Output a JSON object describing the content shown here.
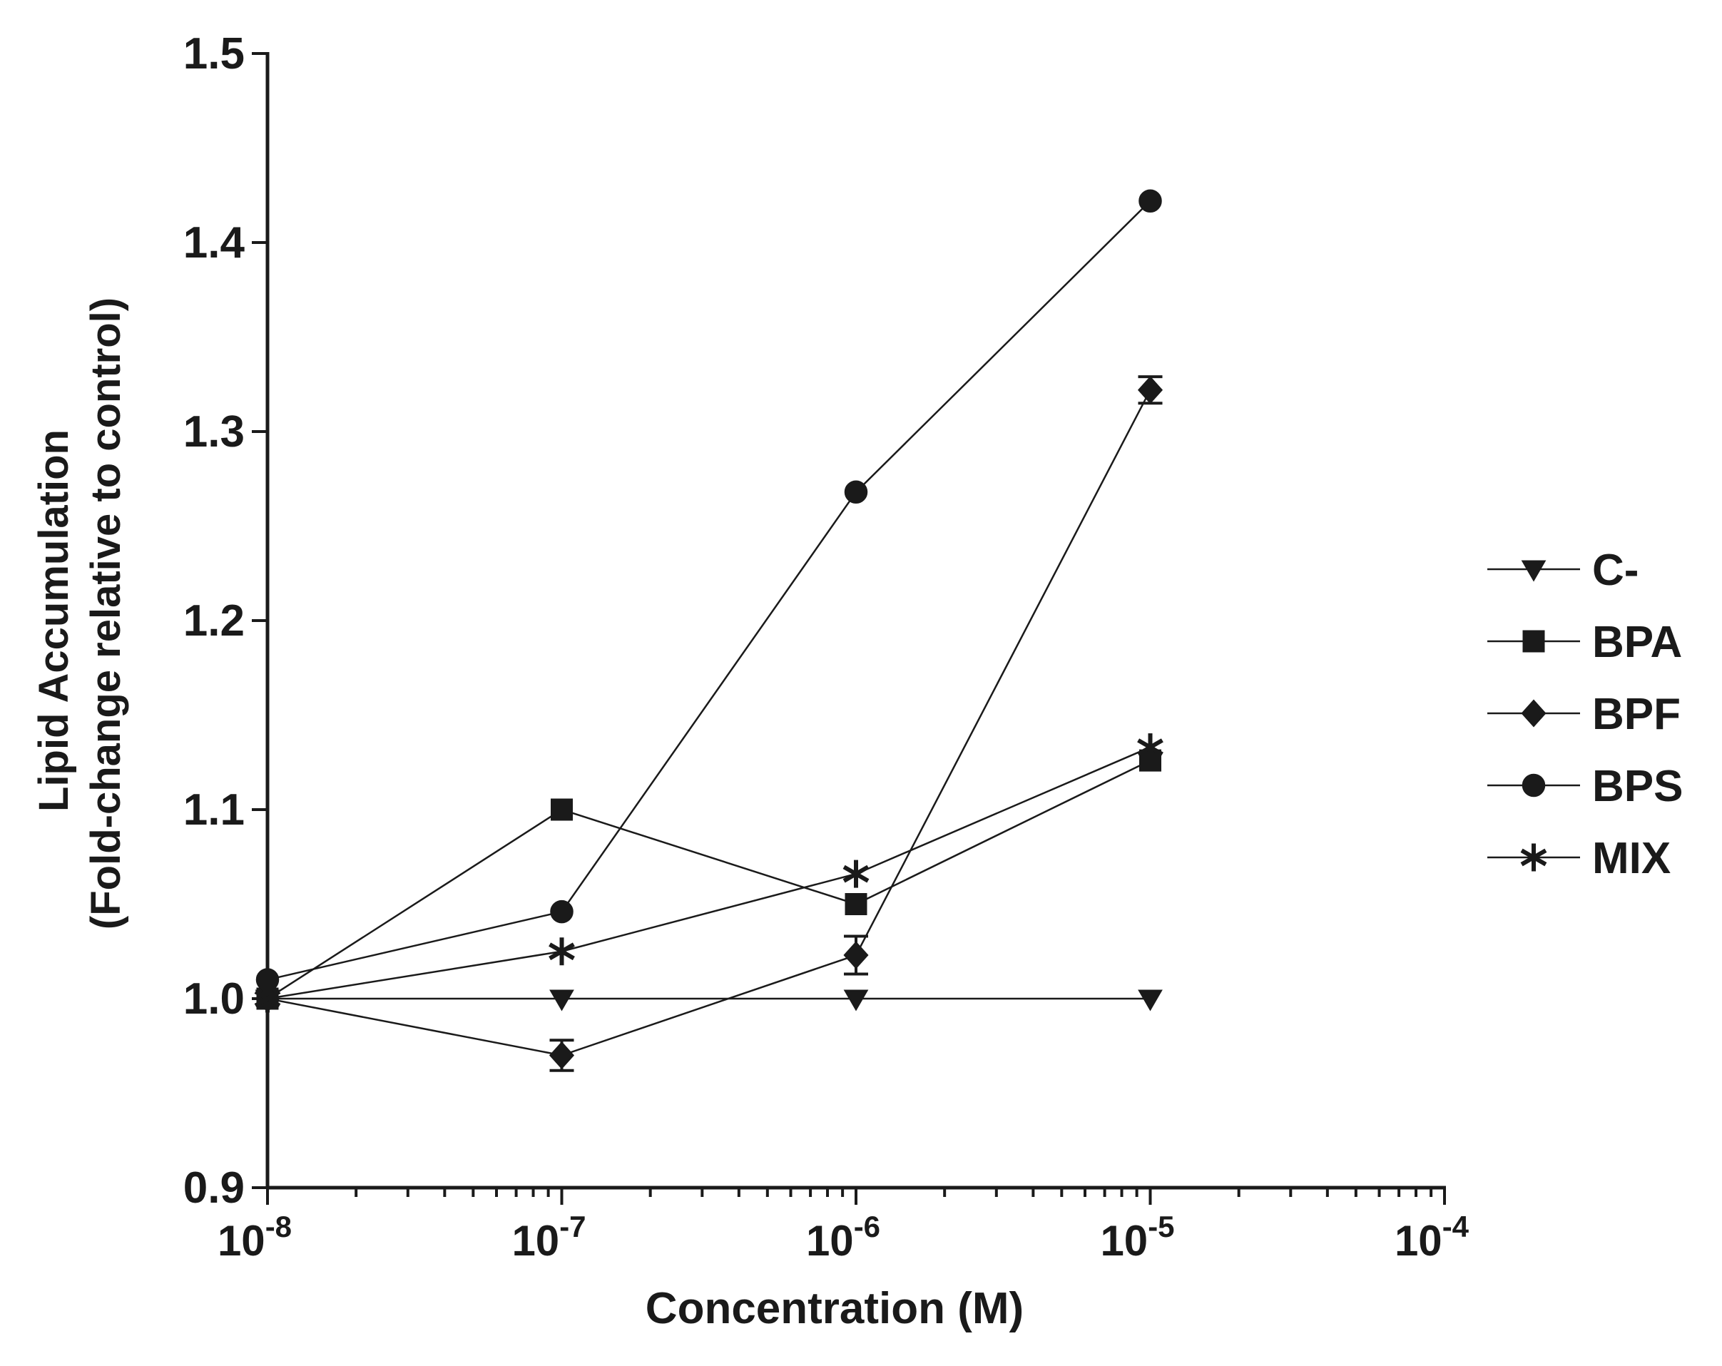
{
  "chart_data": {
    "type": "line",
    "title": "",
    "xlabel": "Concentration (M)",
    "ylabel_line1": "Lipid Accumulation",
    "ylabel_line2": "(Fold-change relative to control)",
    "x_scale": "log10",
    "xlim_exp": [
      -8,
      -4
    ],
    "ylim": [
      0.9,
      1.5
    ],
    "x_ticks": [
      {
        "base": "10",
        "exp": "-8"
      },
      {
        "base": "10",
        "exp": "-7"
      },
      {
        "base": "10",
        "exp": "-6"
      },
      {
        "base": "10",
        "exp": "-5"
      },
      {
        "base": "10",
        "exp": "-4"
      }
    ],
    "y_ticks": [
      "0.9",
      "1.0",
      "1.1",
      "1.2",
      "1.3",
      "1.4",
      "1.5"
    ],
    "x": [
      1e-08,
      1e-07,
      1e-06,
      1e-05
    ],
    "legend_position": "right",
    "series": [
      {
        "name": "C-",
        "marker": "triangle-down",
        "values": [
          1.0,
          1.0,
          1.0,
          1.0
        ],
        "errors": [
          0,
          0,
          0,
          0
        ]
      },
      {
        "name": "BPA",
        "marker": "square",
        "values": [
          1.0,
          1.1,
          1.05,
          1.126
        ],
        "errors": [
          0,
          0,
          0,
          0
        ]
      },
      {
        "name": "BPF",
        "marker": "diamond",
        "values": [
          1.0,
          0.97,
          1.023,
          1.322
        ],
        "errors": [
          0,
          0.008,
          0.01,
          0.007
        ]
      },
      {
        "name": "BPS",
        "marker": "circle",
        "values": [
          1.01,
          1.046,
          1.268,
          1.422
        ],
        "errors": [
          0,
          0,
          0,
          0
        ]
      },
      {
        "name": "MIX",
        "marker": "asterisk",
        "values": [
          1.0,
          1.025,
          1.066,
          1.133
        ],
        "errors": [
          0,
          0,
          0,
          0
        ]
      }
    ]
  }
}
